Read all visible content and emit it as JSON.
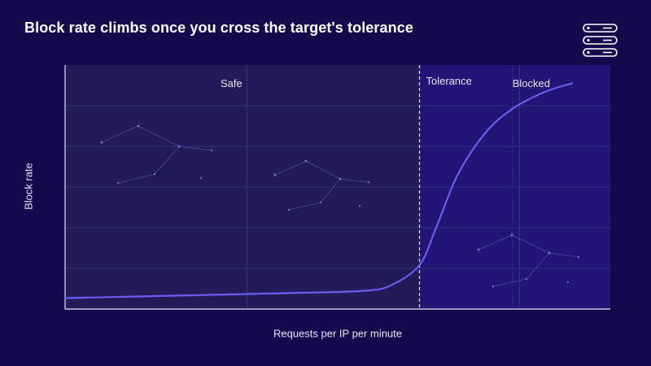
{
  "header": {
    "title": "Block rate climbs once you cross the target's tolerance",
    "logo_icon": "server-stack-icon"
  },
  "colors": {
    "background": "#150a4e",
    "safe_zone": "#231b57",
    "blocked_zone": "#221575",
    "curve": "#6b5cf0",
    "grid": "#3f3787",
    "tolerance_line": "#e6e3f5",
    "text": "#e6e3f5"
  },
  "chart_data": {
    "type": "line",
    "title": "",
    "xlabel": "Requests per IP per minute",
    "ylabel": "Block rate",
    "xlim": [
      0,
      100
    ],
    "ylim": [
      0,
      100
    ],
    "grid": true,
    "tick_labels": false,
    "tolerance_x": 65,
    "zones": [
      {
        "label": "Safe",
        "from": 0,
        "to": 65
      },
      {
        "label": "Blocked",
        "from": 65,
        "to": 100
      }
    ],
    "marker_label": "Tolerance",
    "series": [
      {
        "values": [
          [
            0,
            4.5
          ],
          [
            20,
            5.5
          ],
          [
            40,
            6.5
          ],
          [
            55,
            7.5
          ],
          [
            60,
            10
          ],
          [
            65,
            18
          ],
          [
            68,
            33
          ],
          [
            72,
            55
          ],
          [
            77,
            72
          ],
          [
            82,
            82
          ],
          [
            88,
            89
          ],
          [
            93,
            92.5
          ]
        ]
      }
    ]
  }
}
